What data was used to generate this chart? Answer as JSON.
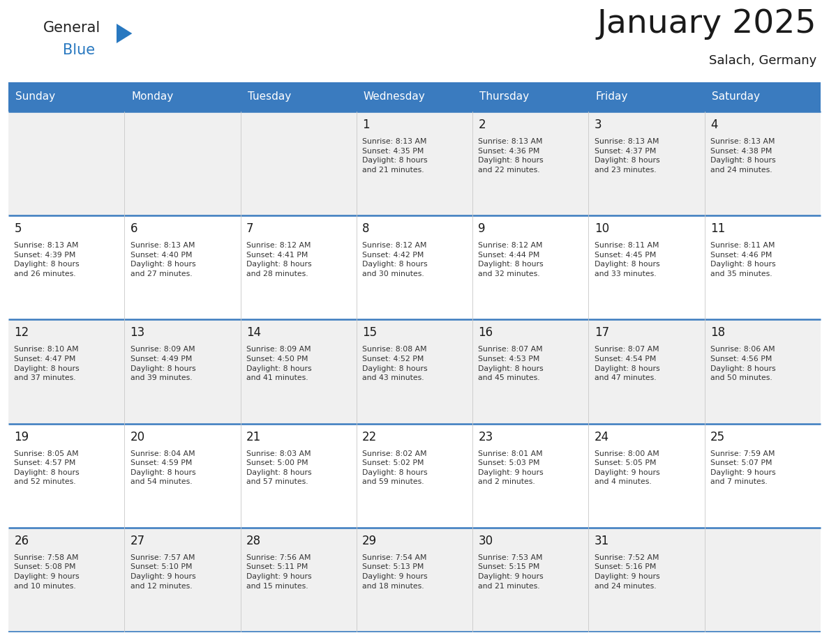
{
  "title": "January 2025",
  "subtitle": "Salach, Germany",
  "days_of_week": [
    "Sunday",
    "Monday",
    "Tuesday",
    "Wednesday",
    "Thursday",
    "Friday",
    "Saturday"
  ],
  "header_bg": "#3a7bbf",
  "header_text": "#ffffff",
  "row_bg_even": "#f0f0f0",
  "row_bg_odd": "#ffffff",
  "day_num_color": "#1a1a1a",
  "info_text_color": "#333333",
  "divider_color": "#3a7bbf",
  "weeks": [
    [
      {
        "day": "",
        "info": ""
      },
      {
        "day": "",
        "info": ""
      },
      {
        "day": "",
        "info": ""
      },
      {
        "day": "1",
        "info": "Sunrise: 8:13 AM\nSunset: 4:35 PM\nDaylight: 8 hours\nand 21 minutes."
      },
      {
        "day": "2",
        "info": "Sunrise: 8:13 AM\nSunset: 4:36 PM\nDaylight: 8 hours\nand 22 minutes."
      },
      {
        "day": "3",
        "info": "Sunrise: 8:13 AM\nSunset: 4:37 PM\nDaylight: 8 hours\nand 23 minutes."
      },
      {
        "day": "4",
        "info": "Sunrise: 8:13 AM\nSunset: 4:38 PM\nDaylight: 8 hours\nand 24 minutes."
      }
    ],
    [
      {
        "day": "5",
        "info": "Sunrise: 8:13 AM\nSunset: 4:39 PM\nDaylight: 8 hours\nand 26 minutes."
      },
      {
        "day": "6",
        "info": "Sunrise: 8:13 AM\nSunset: 4:40 PM\nDaylight: 8 hours\nand 27 minutes."
      },
      {
        "day": "7",
        "info": "Sunrise: 8:12 AM\nSunset: 4:41 PM\nDaylight: 8 hours\nand 28 minutes."
      },
      {
        "day": "8",
        "info": "Sunrise: 8:12 AM\nSunset: 4:42 PM\nDaylight: 8 hours\nand 30 minutes."
      },
      {
        "day": "9",
        "info": "Sunrise: 8:12 AM\nSunset: 4:44 PM\nDaylight: 8 hours\nand 32 minutes."
      },
      {
        "day": "10",
        "info": "Sunrise: 8:11 AM\nSunset: 4:45 PM\nDaylight: 8 hours\nand 33 minutes."
      },
      {
        "day": "11",
        "info": "Sunrise: 8:11 AM\nSunset: 4:46 PM\nDaylight: 8 hours\nand 35 minutes."
      }
    ],
    [
      {
        "day": "12",
        "info": "Sunrise: 8:10 AM\nSunset: 4:47 PM\nDaylight: 8 hours\nand 37 minutes."
      },
      {
        "day": "13",
        "info": "Sunrise: 8:09 AM\nSunset: 4:49 PM\nDaylight: 8 hours\nand 39 minutes."
      },
      {
        "day": "14",
        "info": "Sunrise: 8:09 AM\nSunset: 4:50 PM\nDaylight: 8 hours\nand 41 minutes."
      },
      {
        "day": "15",
        "info": "Sunrise: 8:08 AM\nSunset: 4:52 PM\nDaylight: 8 hours\nand 43 minutes."
      },
      {
        "day": "16",
        "info": "Sunrise: 8:07 AM\nSunset: 4:53 PM\nDaylight: 8 hours\nand 45 minutes."
      },
      {
        "day": "17",
        "info": "Sunrise: 8:07 AM\nSunset: 4:54 PM\nDaylight: 8 hours\nand 47 minutes."
      },
      {
        "day": "18",
        "info": "Sunrise: 8:06 AM\nSunset: 4:56 PM\nDaylight: 8 hours\nand 50 minutes."
      }
    ],
    [
      {
        "day": "19",
        "info": "Sunrise: 8:05 AM\nSunset: 4:57 PM\nDaylight: 8 hours\nand 52 minutes."
      },
      {
        "day": "20",
        "info": "Sunrise: 8:04 AM\nSunset: 4:59 PM\nDaylight: 8 hours\nand 54 minutes."
      },
      {
        "day": "21",
        "info": "Sunrise: 8:03 AM\nSunset: 5:00 PM\nDaylight: 8 hours\nand 57 minutes."
      },
      {
        "day": "22",
        "info": "Sunrise: 8:02 AM\nSunset: 5:02 PM\nDaylight: 8 hours\nand 59 minutes."
      },
      {
        "day": "23",
        "info": "Sunrise: 8:01 AM\nSunset: 5:03 PM\nDaylight: 9 hours\nand 2 minutes."
      },
      {
        "day": "24",
        "info": "Sunrise: 8:00 AM\nSunset: 5:05 PM\nDaylight: 9 hours\nand 4 minutes."
      },
      {
        "day": "25",
        "info": "Sunrise: 7:59 AM\nSunset: 5:07 PM\nDaylight: 9 hours\nand 7 minutes."
      }
    ],
    [
      {
        "day": "26",
        "info": "Sunrise: 7:58 AM\nSunset: 5:08 PM\nDaylight: 9 hours\nand 10 minutes."
      },
      {
        "day": "27",
        "info": "Sunrise: 7:57 AM\nSunset: 5:10 PM\nDaylight: 9 hours\nand 12 minutes."
      },
      {
        "day": "28",
        "info": "Sunrise: 7:56 AM\nSunset: 5:11 PM\nDaylight: 9 hours\nand 15 minutes."
      },
      {
        "day": "29",
        "info": "Sunrise: 7:54 AM\nSunset: 5:13 PM\nDaylight: 9 hours\nand 18 minutes."
      },
      {
        "day": "30",
        "info": "Sunrise: 7:53 AM\nSunset: 5:15 PM\nDaylight: 9 hours\nand 21 minutes."
      },
      {
        "day": "31",
        "info": "Sunrise: 7:52 AM\nSunset: 5:16 PM\nDaylight: 9 hours\nand 24 minutes."
      },
      {
        "day": "",
        "info": ""
      }
    ]
  ],
  "logo_general_color": "#222222",
  "logo_blue_color": "#2878c0",
  "logo_triangle_color": "#2878c0",
  "title_fontsize": 34,
  "subtitle_fontsize": 13,
  "header_fontsize": 11,
  "day_num_fontsize": 12,
  "info_fontsize": 7.8
}
